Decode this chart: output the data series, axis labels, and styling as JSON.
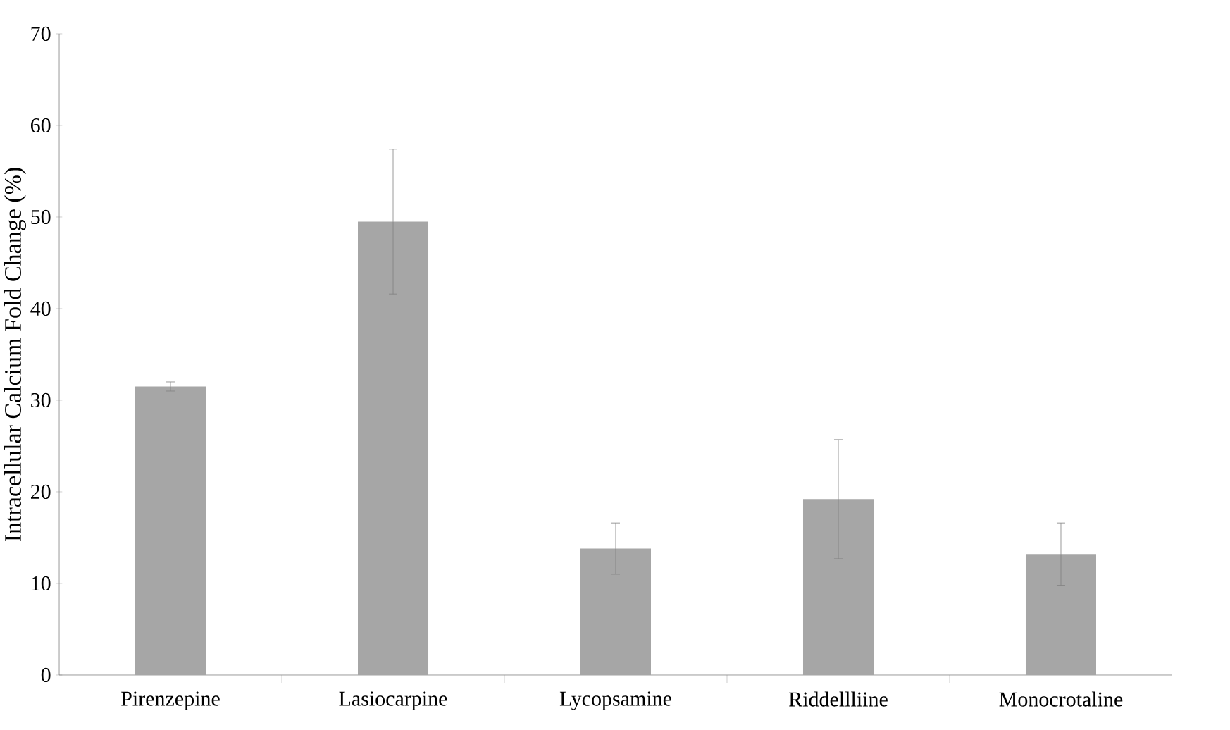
{
  "chart_data": {
    "type": "bar",
    "ylabel": "Intracellular Calcium Fold Change (%)",
    "categories": [
      "Pirenzepine",
      "Lasiocarpine",
      "Lycopsamine",
      "Riddellliine",
      "Monocrotaline"
    ],
    "values": [
      31.5,
      49.5,
      13.8,
      19.2,
      13.2
    ],
    "errors": [
      0.5,
      7.9,
      2.8,
      6.5,
      3.4
    ],
    "color": "#a6a6a6",
    "ylim": [
      0,
      70
    ],
    "yticks": [
      0,
      10,
      20,
      30,
      40,
      50,
      60,
      70
    ],
    "grid": false
  }
}
